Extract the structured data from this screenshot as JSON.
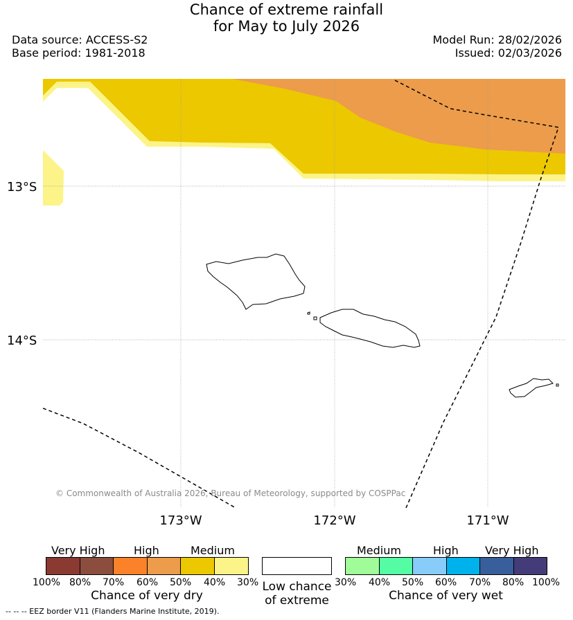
{
  "title_line1": "Chance of extreme rainfall",
  "title_line2": "for May to July 2026",
  "data_source": "Data source: ACCESS-S2",
  "base_period": "Base period: 1981-2018",
  "model_run": "Model Run: 28/02/2026",
  "issued": "Issued: 02/03/2026",
  "lat_ticks": [
    "13°S",
    "14°S"
  ],
  "lon_ticks": [
    "173°W",
    "172°W",
    "171°W"
  ],
  "copyright": "© Commonwealth of Australia 2026, Bureau of Meteorology, supported by COSPPac",
  "legend": {
    "dry": {
      "headers": [
        "Very High",
        "High",
        "Medium"
      ],
      "ticks": [
        "100%",
        "80%",
        "70%",
        "60%",
        "50%",
        "40%",
        "30%"
      ],
      "colors": [
        "#8b3a32",
        "#8b4e3e",
        "#fb8228",
        "#ec9c4a",
        "#ecc800",
        "#fcf488"
      ],
      "label": "Chance of very dry"
    },
    "neutral": {
      "label_line1": "Low chance",
      "label_line2": "of extreme",
      "color": "#ffffff"
    },
    "wet": {
      "headers": [
        "Medium",
        "High",
        "Very High"
      ],
      "ticks": [
        "30%",
        "40%",
        "50%",
        "60%",
        "70%",
        "80%",
        "100%"
      ],
      "colors": [
        "#a0fc98",
        "#54fca4",
        "#88ccfa",
        "#00b2ec",
        "#385e9c",
        "#443c78"
      ],
      "label": "Chance of very wet"
    }
  },
  "eez_note": "--  --  -- EEZ border V11 (Flanders Marine Institute, 2019)."
}
